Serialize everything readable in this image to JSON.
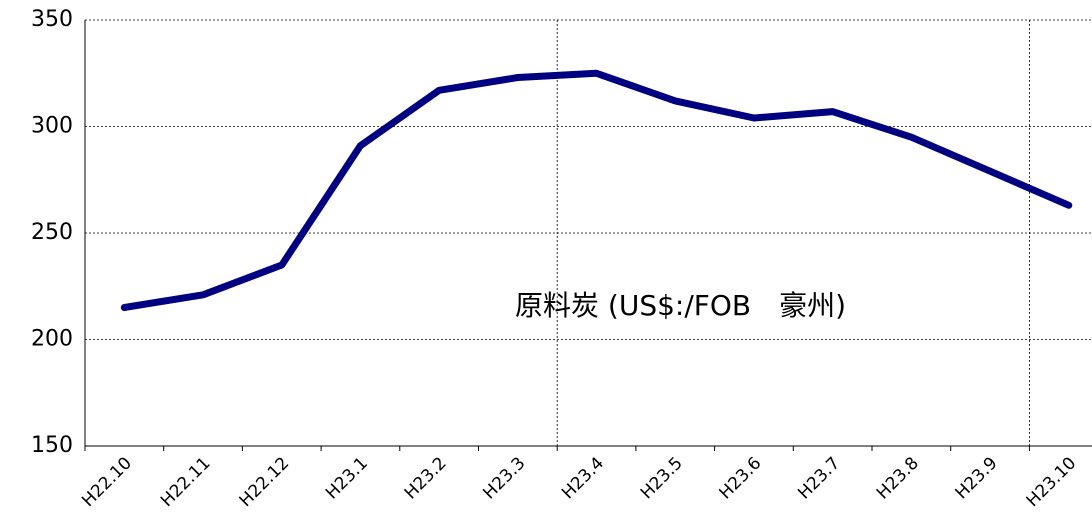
{
  "chart_data": {
    "type": "line",
    "annotation": "原料炭 (US$:/FOB　豪州)",
    "categories": [
      "H22.10",
      "H22.11",
      "H22.12",
      "H23.1",
      "H23.2",
      "H23.3",
      "H23.4",
      "H23.5",
      "H23.6",
      "H23.7",
      "H23.8",
      "H23.9",
      "H23.10"
    ],
    "values": [
      215,
      221,
      235,
      291,
      317,
      323,
      325,
      312,
      304,
      307,
      295,
      279,
      263
    ],
    "color": "#000080",
    "ylim": [
      150,
      350
    ],
    "yticks": [
      150,
      200,
      250,
      300,
      350
    ],
    "grid": true
  }
}
